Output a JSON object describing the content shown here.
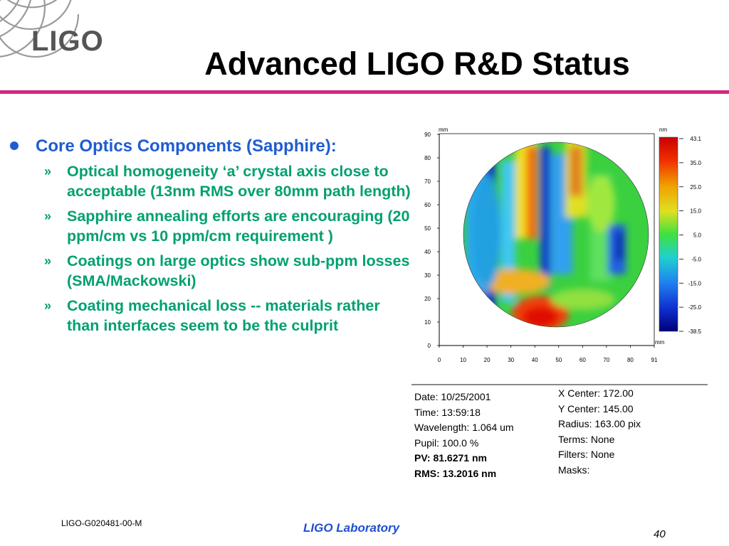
{
  "header": {
    "logo_text": "LIGO",
    "title": "Advanced LIGO R&D Status"
  },
  "bullets": {
    "main": "Core Optics Components (Sapphire):",
    "subs": [
      "Optical homogeneity ‘a’ crystal axis close to acceptable (13nm RMS over 80mm path length)",
      "Sapphire annealing efforts are encouraging (20 ppm/cm vs 10 ppm/cm requirement )",
      "Coatings on large optics show sub-ppm losses (SMA/Mackowski)",
      "Coating mechanical loss -- materials rather than interfaces seem to be the culprit"
    ],
    "sub_marker": "»"
  },
  "figure": {
    "axis_unit_top": "mm",
    "axis_unit_right": "mm",
    "colorbar_unit": "nm",
    "y_ticks": [
      "90",
      "80",
      "70",
      "60",
      "50",
      "40",
      "30",
      "20",
      "10",
      "0"
    ],
    "x_ticks": [
      "0",
      "10",
      "20",
      "30",
      "40",
      "50",
      "60",
      "70",
      "80",
      "91"
    ],
    "colorbar_ticks": [
      "43.1",
      "35.0",
      "25.0",
      "15.0",
      "5.0",
      "-5.0",
      "-15.0",
      "-25.0",
      "-38.5"
    ],
    "colors": {
      "high": "#e02000",
      "mid": "#40e040",
      "low": "#0010b0"
    }
  },
  "measurement": {
    "left": {
      "date": "Date:  10/25/2001",
      "time": "Time:  13:59:18",
      "wavelength": "Wavelength: 1.064 um",
      "pupil": "Pupil: 100.0 %",
      "pv": "PV: 81.6271 nm",
      "rms": "RMS: 13.2016 nm"
    },
    "right": {
      "x_center": "X Center: 172.00",
      "y_center": "Y Center: 145.00",
      "radius": "Radius: 163.00 pix",
      "terms": "Terms: None",
      "filters": "Filters: None",
      "masks": "Masks:"
    }
  },
  "footer": {
    "doc_id": "LIGO-G020481-00-M",
    "lab": "LIGO Laboratory",
    "page": "40"
  }
}
